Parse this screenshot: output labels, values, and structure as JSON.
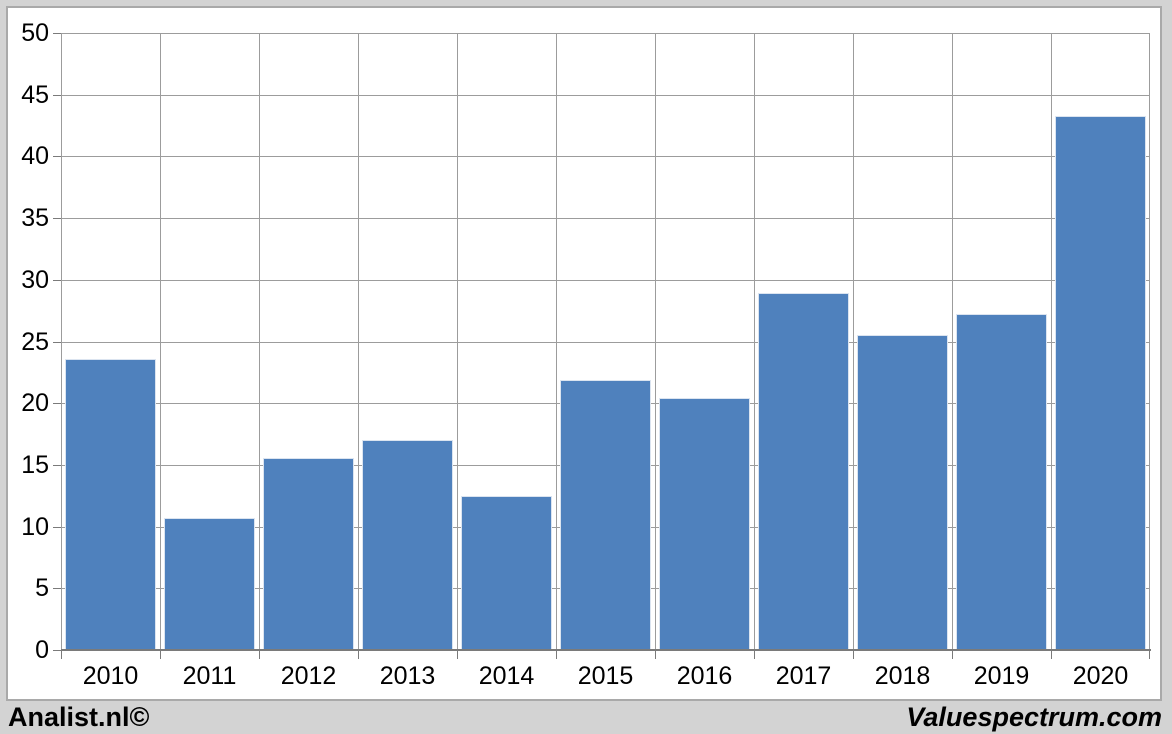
{
  "chart_data": {
    "type": "bar",
    "title": "",
    "xlabel": "",
    "ylabel": "",
    "categories": [
      "2010",
      "2011",
      "2012",
      "2013",
      "2014",
      "2015",
      "2016",
      "2017",
      "2018",
      "2019",
      "2020"
    ],
    "values": [
      23.6,
      10.7,
      15.6,
      17.0,
      12.5,
      21.9,
      20.4,
      28.9,
      25.5,
      27.2,
      43.3
    ],
    "ylim": [
      0,
      50
    ],
    "y_ticks": [
      0,
      5,
      10,
      15,
      20,
      25,
      30,
      35,
      40,
      45,
      50
    ],
    "grid": true,
    "legend": false,
    "bar_color": "#4f81bd",
    "bar_border_color": "#dbe4f0",
    "grid_color": "#9c9c9c",
    "axis_color": "#7a7a7a",
    "tick_label_color": "#000000",
    "plot_bg": "#ffffff",
    "page_bg": "#d3d3d3",
    "panel_border_color": "#a9a9a9"
  },
  "footer": {
    "left_brand": "Analist.nl©",
    "right_brand": "Valuespectrum.com"
  }
}
